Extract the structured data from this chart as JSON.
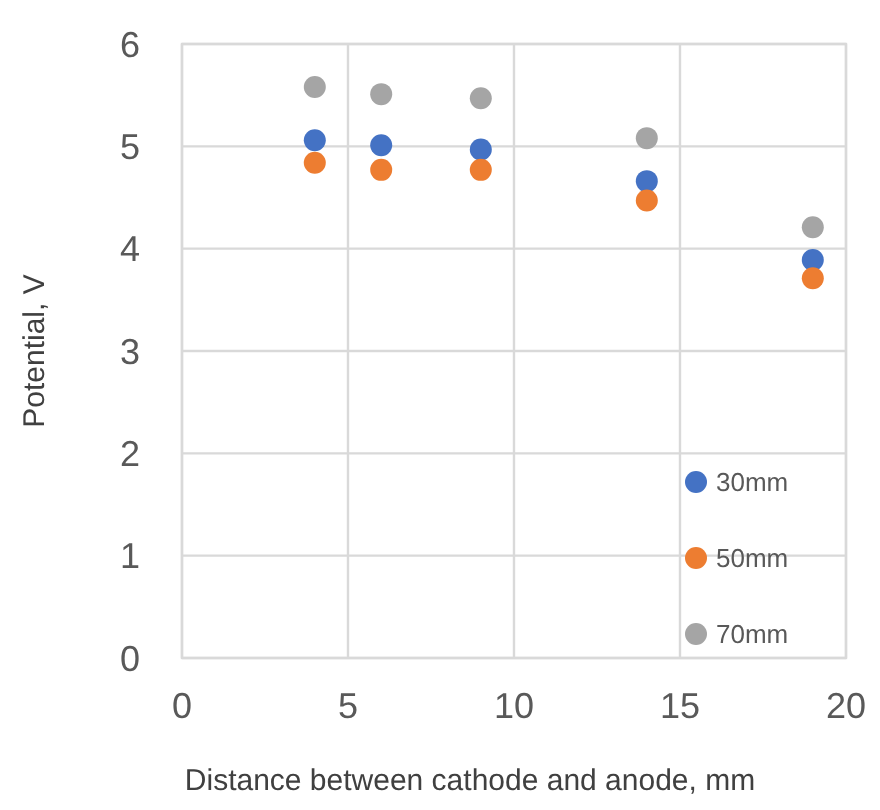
{
  "chart_data": {
    "type": "scatter",
    "xlabel": "Distance between cathode and anode, mm",
    "ylabel": "Potential, V",
    "x": [
      4,
      6,
      9,
      14,
      19
    ],
    "xlim": [
      0,
      20
    ],
    "xticks": [
      0,
      5,
      10,
      15,
      20
    ],
    "ylim": [
      0,
      6
    ],
    "yticks": [
      0,
      1,
      2,
      3,
      4,
      5,
      6
    ],
    "grid": true,
    "legend": "bottom right",
    "marker": "circle",
    "series": [
      {
        "name": "30mm",
        "color": "#4472c4",
        "values": [
          5.06,
          5.01,
          4.97,
          4.66,
          3.89
        ]
      },
      {
        "name": "50mm",
        "color": "#ed7d31",
        "values": [
          4.84,
          4.77,
          4.77,
          4.47,
          3.71
        ]
      },
      {
        "name": "70mm",
        "color": "#a5a5a5",
        "values": [
          5.58,
          5.51,
          5.47,
          5.08,
          4.21
        ]
      }
    ]
  }
}
